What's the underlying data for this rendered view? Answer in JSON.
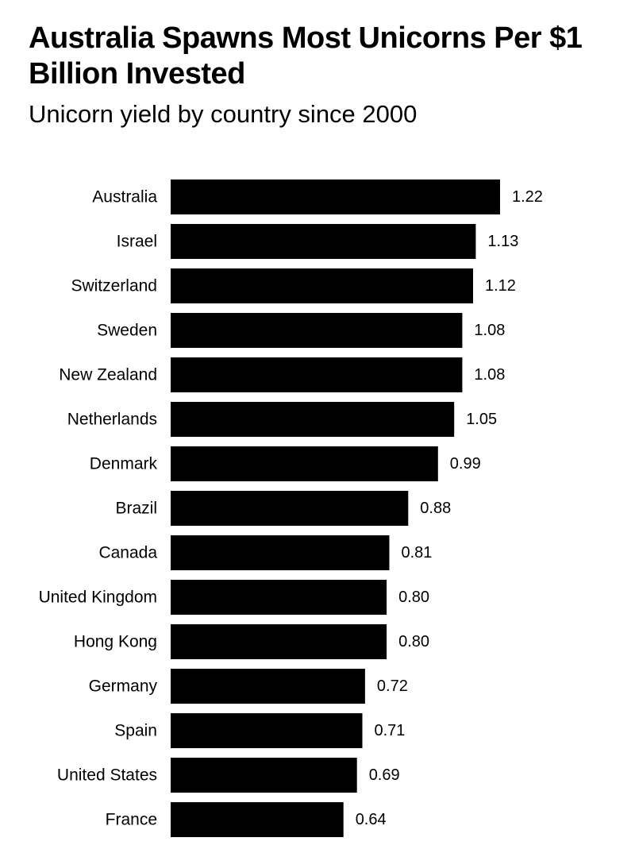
{
  "header": {
    "title": "Australia Spawns Most Unicorns Per $1 Billion Invested",
    "subtitle": "Unicorn yield by country since 2000"
  },
  "colors": {
    "bar": "#000000",
    "text": "#000000",
    "background": "#ffffff"
  },
  "chart_data": {
    "type": "bar",
    "orientation": "horizontal",
    "title": "Australia Spawns Most Unicorns Per $1 Billion Invested",
    "subtitle": "Unicorn yield by country since 2000",
    "xlabel": "",
    "ylabel": "",
    "grid": false,
    "legend": "none",
    "xlim": [
      0,
      1.22
    ],
    "categories": [
      "Australia",
      "Israel",
      "Switzerland",
      "Sweden",
      "New Zealand",
      "Netherlands",
      "Denmark",
      "Brazil",
      "Canada",
      "United Kingdom",
      "Hong Kong",
      "Germany",
      "Spain",
      "United States",
      "France"
    ],
    "values": [
      1.22,
      1.13,
      1.12,
      1.08,
      1.08,
      1.05,
      0.99,
      0.88,
      0.81,
      0.8,
      0.8,
      0.72,
      0.71,
      0.69,
      0.64
    ],
    "value_labels": [
      "1.22",
      "1.13",
      "1.12",
      "1.08",
      "1.08",
      "1.05",
      "0.99",
      "0.88",
      "0.81",
      "0.80",
      "0.80",
      "0.72",
      "0.71",
      "0.69",
      "0.64"
    ]
  }
}
